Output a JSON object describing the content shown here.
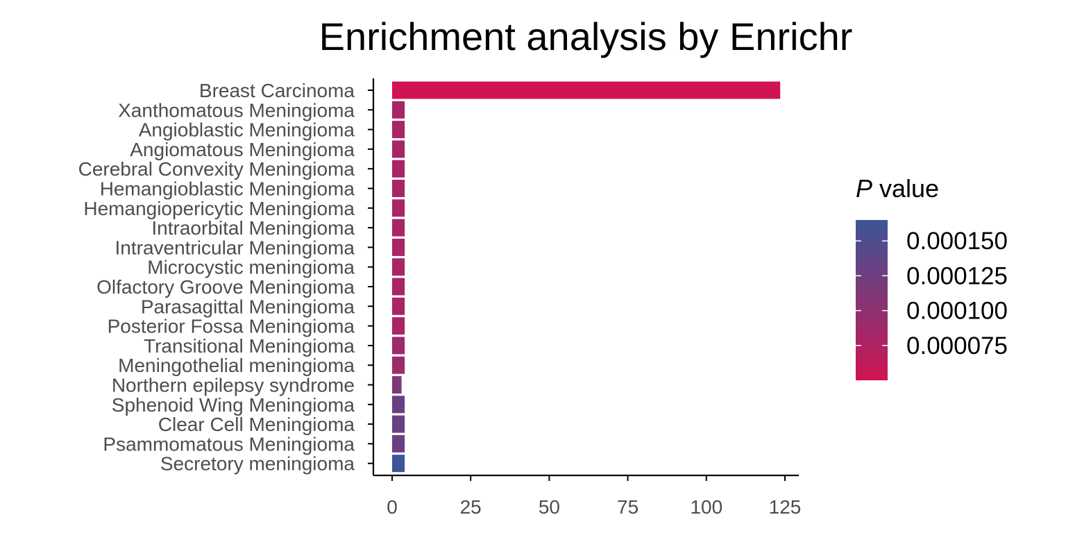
{
  "chart_data": {
    "type": "bar",
    "orientation": "horizontal",
    "title": "Enrichment analysis by Enrichr",
    "xlabel": "",
    "ylabel": "",
    "xlim": [
      0,
      125
    ],
    "x_ticks": [
      0,
      25,
      50,
      75,
      100,
      125
    ],
    "grid": false,
    "categories": [
      "Breast Carcinoma",
      "Xanthomatous Meningioma",
      "Angioblastic Meningioma",
      "Angiomatous Meningioma",
      "Cerebral Convexity Meningioma",
      "Hemangioblastic Meningioma",
      "Hemangiopericytic Meningioma",
      "Intraorbital Meningioma",
      "Intraventricular Meningioma",
      "Microcystic meningioma",
      "Olfactory Groove Meningioma",
      "Parasagittal Meningioma",
      "Posterior Fossa Meningioma",
      "Transitional Meningioma",
      "Meningothelial meningioma",
      "Northern epilepsy syndrome",
      "Sphenoid Wing Meningioma",
      "Clear Cell Meningioma",
      "Psammomatous Meningioma",
      "Secretory meningioma"
    ],
    "values": [
      123.5,
      4,
      4,
      4,
      4,
      4,
      4,
      4,
      4,
      4,
      4,
      4,
      4,
      4,
      4,
      3,
      4,
      4,
      4,
      4
    ],
    "p_values": [
      5e-05,
      8e-05,
      8e-05,
      8e-05,
      8e-05,
      8e-05,
      8e-05,
      8e-05,
      8e-05,
      8e-05,
      8e-05,
      8e-05,
      8e-05,
      9e-05,
      9e-05,
      0.000115,
      0.00013,
      0.00013,
      0.00013,
      0.000165
    ],
    "legend": {
      "title_italic": "P",
      "title_rest": " value",
      "labels": [
        "0.000150",
        "0.000125",
        "0.000100",
        "0.000075"
      ],
      "label_values": [
        0.00015,
        0.000125,
        0.0001,
        7.5e-05
      ],
      "range": [
        5e-05,
        0.000165
      ],
      "color_low": "#d01453",
      "color_high": "#3c5597",
      "placement": "right"
    }
  }
}
